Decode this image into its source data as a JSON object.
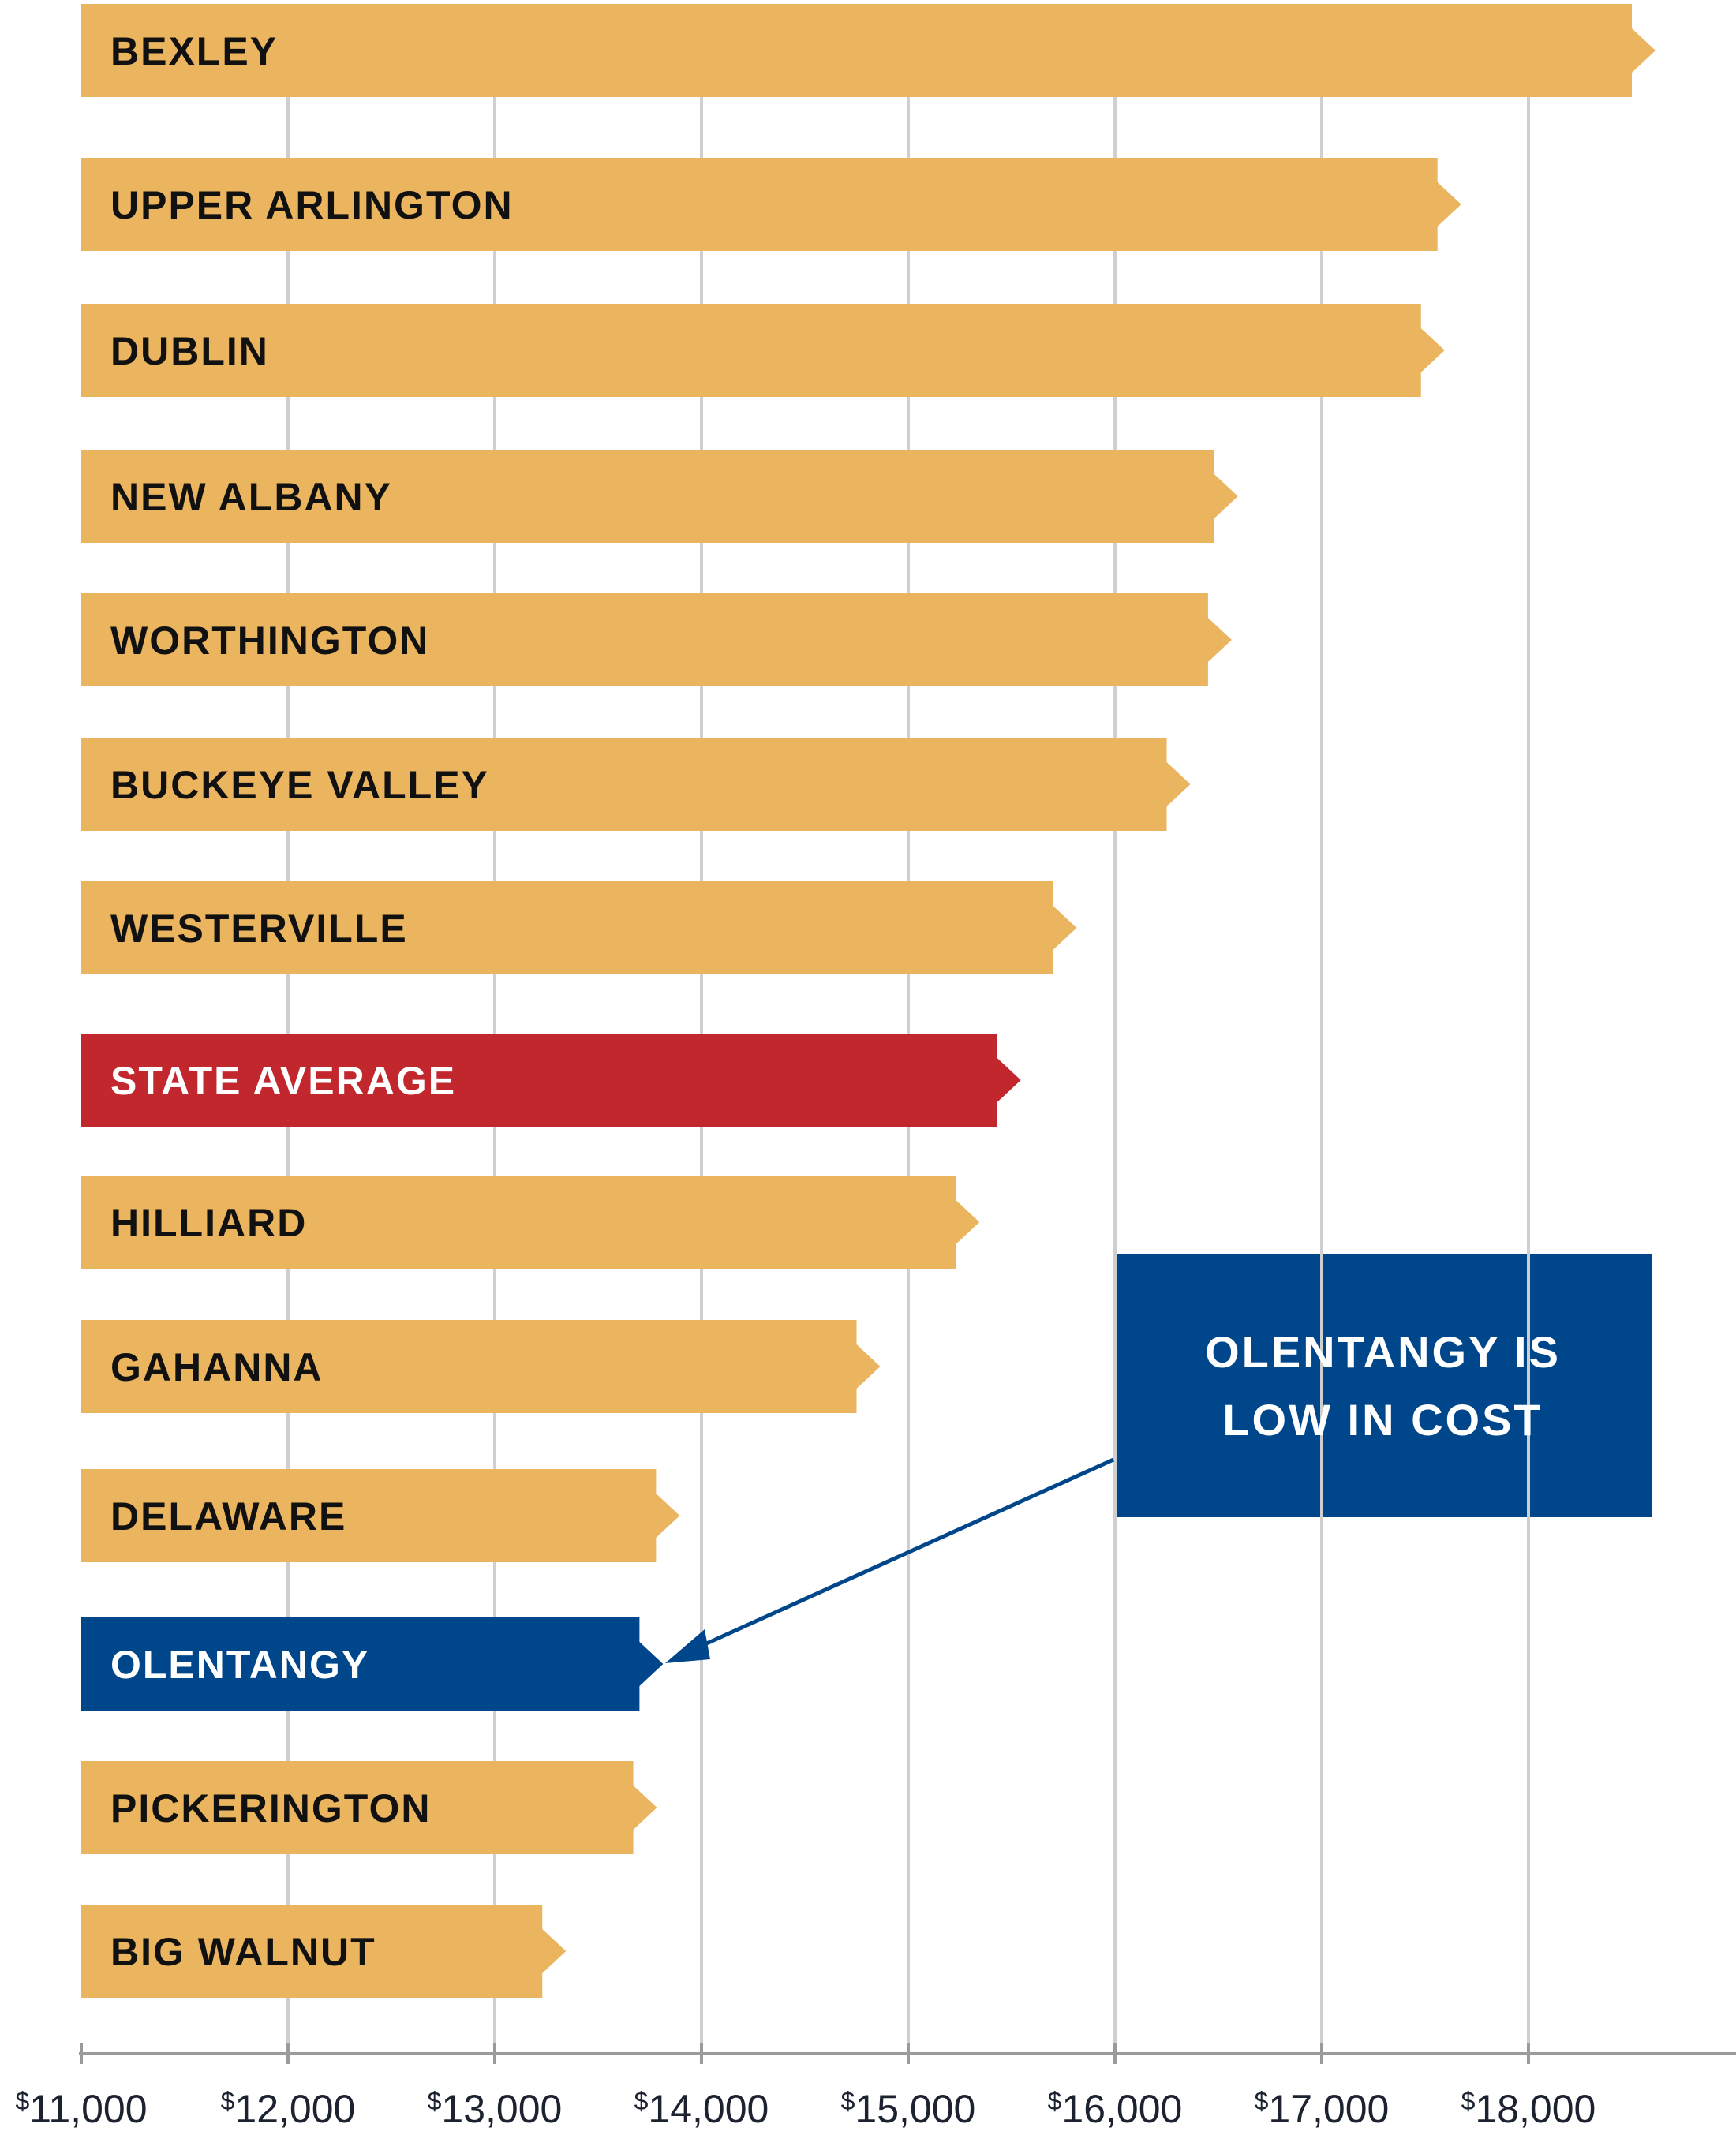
{
  "chart_data": {
    "type": "bar",
    "orientation": "horizontal",
    "categories": [
      "BEXLEY",
      "UPPER ARLINGTON",
      "DUBLIN",
      "NEW ALBANY",
      "WORTHINGTON",
      "BUCKEYE VALLEY",
      "WESTERVILLE",
      "STATE AVERAGE",
      "HILLIARD",
      "GAHANNA",
      "DELAWARE",
      "OLENTANGY",
      "PICKERINGTON",
      "BIG WALNUT"
    ],
    "values": [
      18500,
      17560,
      17480,
      16480,
      16450,
      16250,
      15700,
      15430,
      15230,
      14750,
      13780,
      13700,
      13670,
      13230
    ],
    "highlight": {
      "STATE AVERAGE": "#c1272d",
      "OLENTANGY": "#00468b"
    },
    "xlim": [
      11000,
      18900
    ],
    "xticks": [
      11000,
      12000,
      13000,
      14000,
      15000,
      16000,
      17000,
      18000
    ],
    "xtick_prefix": "$",
    "xtick_labels": [
      "11,000",
      "12,000",
      "13,000",
      "14,000",
      "15,000",
      "16,000",
      "17,000",
      "18,000"
    ],
    "grid": true,
    "annotation": {
      "text": "OLENTANGY IS LOW IN COST",
      "target": "OLENTANGY"
    }
  },
  "colors": {
    "bar": "#ebb45e",
    "state_average": "#c1272d",
    "highlight": "#00468b",
    "grid": "#cfcfcf",
    "axis": "#9b9b9b",
    "label_dark": "#111111",
    "label_light": "#ffffff"
  }
}
